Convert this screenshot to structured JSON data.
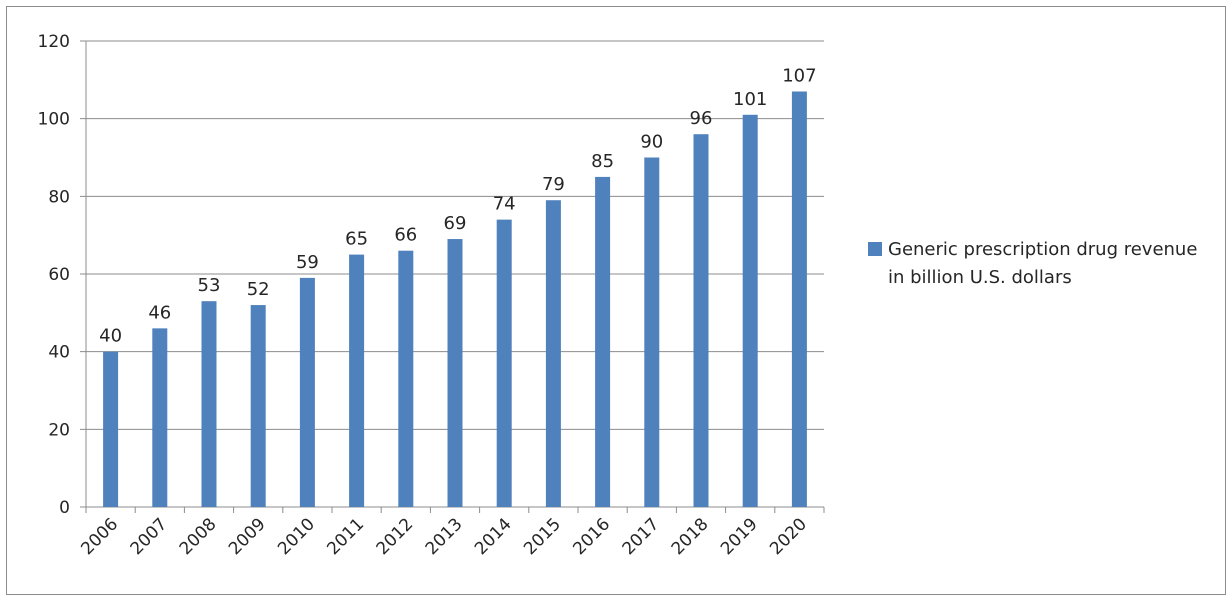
{
  "chart_data": {
    "type": "bar",
    "categories": [
      "2006",
      "2007",
      "2008",
      "2009",
      "2010",
      "2011",
      "2012",
      "2013",
      "2014",
      "2015",
      "2016",
      "2017",
      "2018",
      "2019",
      "2020"
    ],
    "series": [
      {
        "name": "Generic prescription drug revenue in billion U.S. dollars",
        "values": [
          40,
          46,
          53,
          52,
          59,
          65,
          66,
          69,
          74,
          79,
          85,
          90,
          96,
          101,
          107
        ],
        "color": "#4f81bd"
      }
    ],
    "data_labels": [
      "40",
      "46",
      "53",
      "52",
      "59",
      "65",
      "66",
      "69",
      "74",
      "79",
      "85",
      "90",
      "96",
      "101",
      "107"
    ],
    "ylim": [
      0,
      120
    ],
    "yticks": [
      "0",
      "20",
      "40",
      "60",
      "80",
      "100",
      "120"
    ],
    "title": "",
    "xlabel": "",
    "ylabel": "",
    "grid": true,
    "legend_position": "right"
  }
}
